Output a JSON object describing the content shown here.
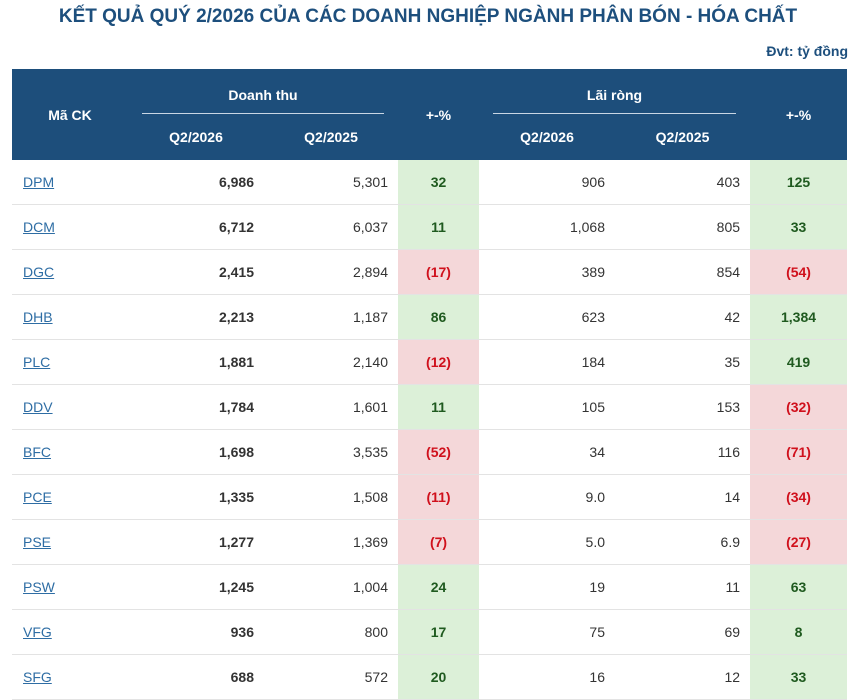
{
  "title": "KẾT QUẢ QUÝ 2/2026 CỦA CÁC DOANH NGHIỆP NGÀNH PHÂN BÓN - HÓA CHẤT",
  "unit": "Đvt: tỷ đồng",
  "header": {
    "code": "Mã CK",
    "revenue": "Doanh thu",
    "profit": "Lãi ròng",
    "pct": "+-%",
    "q2_2026": "Q2/2026",
    "q2_2025": "Q2/2025"
  },
  "rows": [
    {
      "code": "DPM",
      "rev26": "6,986",
      "rev25": "5,301",
      "rev_pct": "32",
      "rev_trend": "pos",
      "np26": "906",
      "np25": "403",
      "np_pct": "125",
      "np_trend": "pos"
    },
    {
      "code": "DCM",
      "rev26": "6,712",
      "rev25": "6,037",
      "rev_pct": "11",
      "rev_trend": "pos",
      "np26": "1,068",
      "np25": "805",
      "np_pct": "33",
      "np_trend": "pos"
    },
    {
      "code": "DGC",
      "rev26": "2,415",
      "rev25": "2,894",
      "rev_pct": "(17)",
      "rev_trend": "neg",
      "np26": "389",
      "np25": "854",
      "np_pct": "(54)",
      "np_trend": "neg"
    },
    {
      "code": "DHB",
      "rev26": "2,213",
      "rev25": "1,187",
      "rev_pct": "86",
      "rev_trend": "pos",
      "np26": "623",
      "np25": "42",
      "np_pct": "1,384",
      "np_trend": "pos"
    },
    {
      "code": "PLC",
      "rev26": "1,881",
      "rev25": "2,140",
      "rev_pct": "(12)",
      "rev_trend": "neg",
      "np26": "184",
      "np25": "35",
      "np_pct": "419",
      "np_trend": "pos"
    },
    {
      "code": "DDV",
      "rev26": "1,784",
      "rev25": "1,601",
      "rev_pct": "11",
      "rev_trend": "pos",
      "np26": "105",
      "np25": "153",
      "np_pct": "(32)",
      "np_trend": "neg"
    },
    {
      "code": "BFC",
      "rev26": "1,698",
      "rev25": "3,535",
      "rev_pct": "(52)",
      "rev_trend": "neg",
      "np26": "34",
      "np25": "116",
      "np_pct": "(71)",
      "np_trend": "neg"
    },
    {
      "code": "PCE",
      "rev26": "1,335",
      "rev25": "1,508",
      "rev_pct": "(11)",
      "rev_trend": "neg",
      "np26": "9.0",
      "np25": "14",
      "np_pct": "(34)",
      "np_trend": "neg"
    },
    {
      "code": "PSE",
      "rev26": "1,277",
      "rev25": "1,369",
      "rev_pct": "(7)",
      "rev_trend": "neg",
      "np26": "5.0",
      "np25": "6.9",
      "np_pct": "(27)",
      "np_trend": "neg"
    },
    {
      "code": "PSW",
      "rev26": "1,245",
      "rev25": "1,004",
      "rev_pct": "24",
      "rev_trend": "pos",
      "np26": "19",
      "np25": "11",
      "np_pct": "63",
      "np_trend": "pos"
    },
    {
      "code": "VFG",
      "rev26": "936",
      "rev25": "800",
      "rev_pct": "17",
      "rev_trend": "pos",
      "np26": "75",
      "np25": "69",
      "np_pct": "8",
      "np_trend": "pos"
    },
    {
      "code": "SFG",
      "rev26": "688",
      "rev25": "572",
      "rev_pct": "20",
      "rev_trend": "pos",
      "np26": "16",
      "np25": "12",
      "np_pct": "33",
      "np_trend": "pos"
    }
  ]
}
